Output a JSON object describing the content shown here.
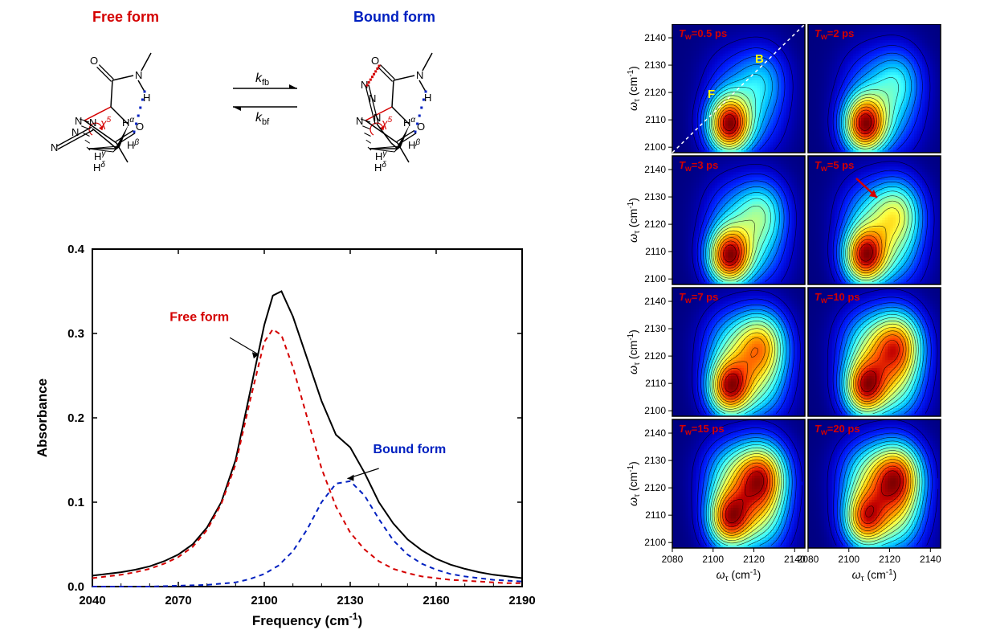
{
  "schematic": {
    "free_label": "Free form",
    "bound_label": "Bound form",
    "free_color": "#d40000",
    "bound_color": "#0020c0",
    "k_fb": "k",
    "k_fb_sub": "fb",
    "k_bf": "k",
    "k_bf_sub": "bf",
    "chi5": "χ",
    "chi5_sup": "5",
    "H_alpha": "H",
    "H_alpha_sup": "α",
    "H_beta": "H",
    "H_beta_sup": "β",
    "H_gamma": "H",
    "H_gamma_sup": "γ",
    "H_delta": "H",
    "H_delta_sup": "δ",
    "atoms_N": "N",
    "atoms_O": "O",
    "atoms_H": "H",
    "bond_color": "#000000",
    "wedge_fill": "#000000",
    "dotted_red": "#d40000",
    "dotted_blue": "#0020c0"
  },
  "spectrum": {
    "type": "line",
    "xlabel": "Frequency (cm⁻¹)",
    "ylabel": "Absorbance",
    "free_label": "Free form",
    "bound_label": "Bound form",
    "xlim": [
      2040,
      2190
    ],
    "xtick_step": 30,
    "xticks": [
      2040,
      2070,
      2100,
      2130,
      2160,
      2190
    ],
    "ylim": [
      0.0,
      0.4
    ],
    "ytick_step": 0.1,
    "yticks": [
      0.0,
      0.1,
      0.2,
      0.3,
      0.4
    ],
    "background_color": "#ffffff",
    "axis_color": "#000000",
    "tick_length": 6,
    "line_width": 2,
    "curve_total_color": "#000000",
    "curve_free_color": "#d40000",
    "curve_bound_color": "#0020c0",
    "dash_pattern": "6,5",
    "label_fontsize": 17,
    "tick_fontsize": 15,
    "legend_free_color": "#d40000",
    "legend_bound_color": "#0020c0",
    "curves": {
      "total": [
        [
          2040,
          0.013
        ],
        [
          2045,
          0.015
        ],
        [
          2050,
          0.017
        ],
        [
          2055,
          0.02
        ],
        [
          2060,
          0.024
        ],
        [
          2065,
          0.03
        ],
        [
          2070,
          0.038
        ],
        [
          2075,
          0.05
        ],
        [
          2080,
          0.07
        ],
        [
          2085,
          0.1
        ],
        [
          2090,
          0.15
        ],
        [
          2095,
          0.23
        ],
        [
          2100,
          0.31
        ],
        [
          2103,
          0.345
        ],
        [
          2106,
          0.35
        ],
        [
          2110,
          0.32
        ],
        [
          2115,
          0.27
        ],
        [
          2120,
          0.22
        ],
        [
          2125,
          0.18
        ],
        [
          2130,
          0.165
        ],
        [
          2135,
          0.135
        ],
        [
          2140,
          0.1
        ],
        [
          2145,
          0.075
        ],
        [
          2150,
          0.056
        ],
        [
          2155,
          0.043
        ],
        [
          2160,
          0.033
        ],
        [
          2165,
          0.026
        ],
        [
          2170,
          0.021
        ],
        [
          2175,
          0.017
        ],
        [
          2180,
          0.014
        ],
        [
          2185,
          0.012
        ],
        [
          2190,
          0.01
        ]
      ],
      "free": [
        [
          2040,
          0.01
        ],
        [
          2045,
          0.012
        ],
        [
          2050,
          0.014
        ],
        [
          2055,
          0.017
        ],
        [
          2060,
          0.021
        ],
        [
          2065,
          0.027
        ],
        [
          2070,
          0.035
        ],
        [
          2075,
          0.047
        ],
        [
          2080,
          0.067
        ],
        [
          2085,
          0.098
        ],
        [
          2090,
          0.145
        ],
        [
          2095,
          0.22
        ],
        [
          2100,
          0.29
        ],
        [
          2103,
          0.305
        ],
        [
          2106,
          0.298
        ],
        [
          2110,
          0.26
        ],
        [
          2115,
          0.2
        ],
        [
          2120,
          0.14
        ],
        [
          2125,
          0.095
        ],
        [
          2130,
          0.064
        ],
        [
          2135,
          0.044
        ],
        [
          2140,
          0.03
        ],
        [
          2145,
          0.021
        ],
        [
          2150,
          0.016
        ],
        [
          2155,
          0.012
        ],
        [
          2160,
          0.01
        ],
        [
          2165,
          0.008
        ],
        [
          2170,
          0.007
        ],
        [
          2175,
          0.006
        ],
        [
          2180,
          0.005
        ],
        [
          2185,
          0.004
        ],
        [
          2190,
          0.004
        ]
      ],
      "bound": [
        [
          2040,
          0.0
        ],
        [
          2060,
          0.0
        ],
        [
          2080,
          0.002
        ],
        [
          2090,
          0.005
        ],
        [
          2095,
          0.009
        ],
        [
          2100,
          0.015
        ],
        [
          2105,
          0.025
        ],
        [
          2110,
          0.042
        ],
        [
          2115,
          0.068
        ],
        [
          2120,
          0.1
        ],
        [
          2125,
          0.122
        ],
        [
          2130,
          0.125
        ],
        [
          2135,
          0.108
        ],
        [
          2140,
          0.08
        ],
        [
          2145,
          0.055
        ],
        [
          2150,
          0.038
        ],
        [
          2155,
          0.027
        ],
        [
          2160,
          0.02
        ],
        [
          2165,
          0.015
        ],
        [
          2170,
          0.012
        ],
        [
          2175,
          0.01
        ],
        [
          2180,
          0.008
        ],
        [
          2185,
          0.007
        ],
        [
          2190,
          0.006
        ]
      ]
    },
    "arrow_free": {
      "from": [
        2088,
        0.295
      ],
      "to": [
        2098,
        0.275
      ]
    },
    "arrow_bound": {
      "from": [
        2140,
        0.14
      ],
      "to": [
        2129,
        0.128
      ]
    }
  },
  "twod": {
    "type": "heatmap-grid",
    "rows": 4,
    "cols": 2,
    "xlabel": "ω_τ (cm⁻¹)",
    "ylabel": "ω_τ (cm⁻¹)",
    "yticks": [
      2100,
      2110,
      2120,
      2130,
      2140
    ],
    "xticks": [
      2080,
      2100,
      2120,
      2140
    ],
    "xlim": [
      2080,
      2145
    ],
    "ylim": [
      2098,
      2145
    ],
    "tick_fontsize": 12,
    "label_fontsize": 14,
    "annotation_color": "#d40000",
    "annotation_fontsize": 13,
    "annotation_weight": "bold",
    "F_label": "F",
    "B_label": "B",
    "FB_color": "#ffff00",
    "diagonal_color": "#ffffff",
    "arrow_color": "#d40000",
    "colormap": [
      "#000080",
      "#0000c8",
      "#0020ff",
      "#0070ff",
      "#00c0ff",
      "#40ffff",
      "#80ffc0",
      "#c0ff80",
      "#ffff40",
      "#ffc000",
      "#ff8000",
      "#ff4000",
      "#c00000",
      "#800000"
    ],
    "panels": [
      {
        "label": "T_w=0.5 ps",
        "F_center": [
          2108,
          2108
        ],
        "F_ampl": 1.0,
        "B_center": [
          2124,
          2124
        ],
        "B_ampl": 0.3,
        "show_FB": true,
        "show_diag": true,
        "show_arrow": false
      },
      {
        "label": "T_w=2 ps",
        "F_center": [
          2108,
          2108
        ],
        "F_ampl": 1.0,
        "B_center": [
          2124,
          2124
        ],
        "B_ampl": 0.35,
        "show_FB": false,
        "show_diag": false,
        "show_arrow": false
      },
      {
        "label": "T_w=3 ps",
        "F_center": [
          2108,
          2108
        ],
        "F_ampl": 0.95,
        "B_center": [
          2124,
          2124
        ],
        "B_ampl": 0.42,
        "show_FB": false,
        "show_diag": false,
        "show_arrow": false
      },
      {
        "label": "T_w=5 ps",
        "F_center": [
          2108,
          2108
        ],
        "F_ampl": 0.9,
        "B_center": [
          2124,
          2124
        ],
        "B_ampl": 0.52,
        "show_FB": false,
        "show_diag": false,
        "show_arrow": true
      },
      {
        "label": "T_w=7 ps",
        "F_center": [
          2108,
          2108
        ],
        "F_ampl": 0.85,
        "B_center": [
          2124,
          2124
        ],
        "B_ampl": 0.65,
        "show_FB": false,
        "show_diag": false,
        "show_arrow": false
      },
      {
        "label": "T_w=10 ps",
        "F_center": [
          2108,
          2108
        ],
        "F_ampl": 0.82,
        "B_center": [
          2124,
          2124
        ],
        "B_ampl": 0.75,
        "show_FB": false,
        "show_diag": false,
        "show_arrow": false
      },
      {
        "label": "T_w=15 ps",
        "F_center": [
          2108,
          2108
        ],
        "F_ampl": 0.8,
        "B_center": [
          2124,
          2124
        ],
        "B_ampl": 0.82,
        "show_FB": false,
        "show_diag": false,
        "show_arrow": false
      },
      {
        "label": "T_w=20 ps",
        "F_center": [
          2108,
          2108
        ],
        "F_ampl": 0.78,
        "B_center": [
          2124,
          2124
        ],
        "B_ampl": 0.88,
        "show_FB": false,
        "show_diag": false,
        "show_arrow": false
      }
    ],
    "gauss_sigma": 7.5,
    "n_contours": 14,
    "contour_color": "#000000",
    "cross_ampl_factor": 0.45
  }
}
